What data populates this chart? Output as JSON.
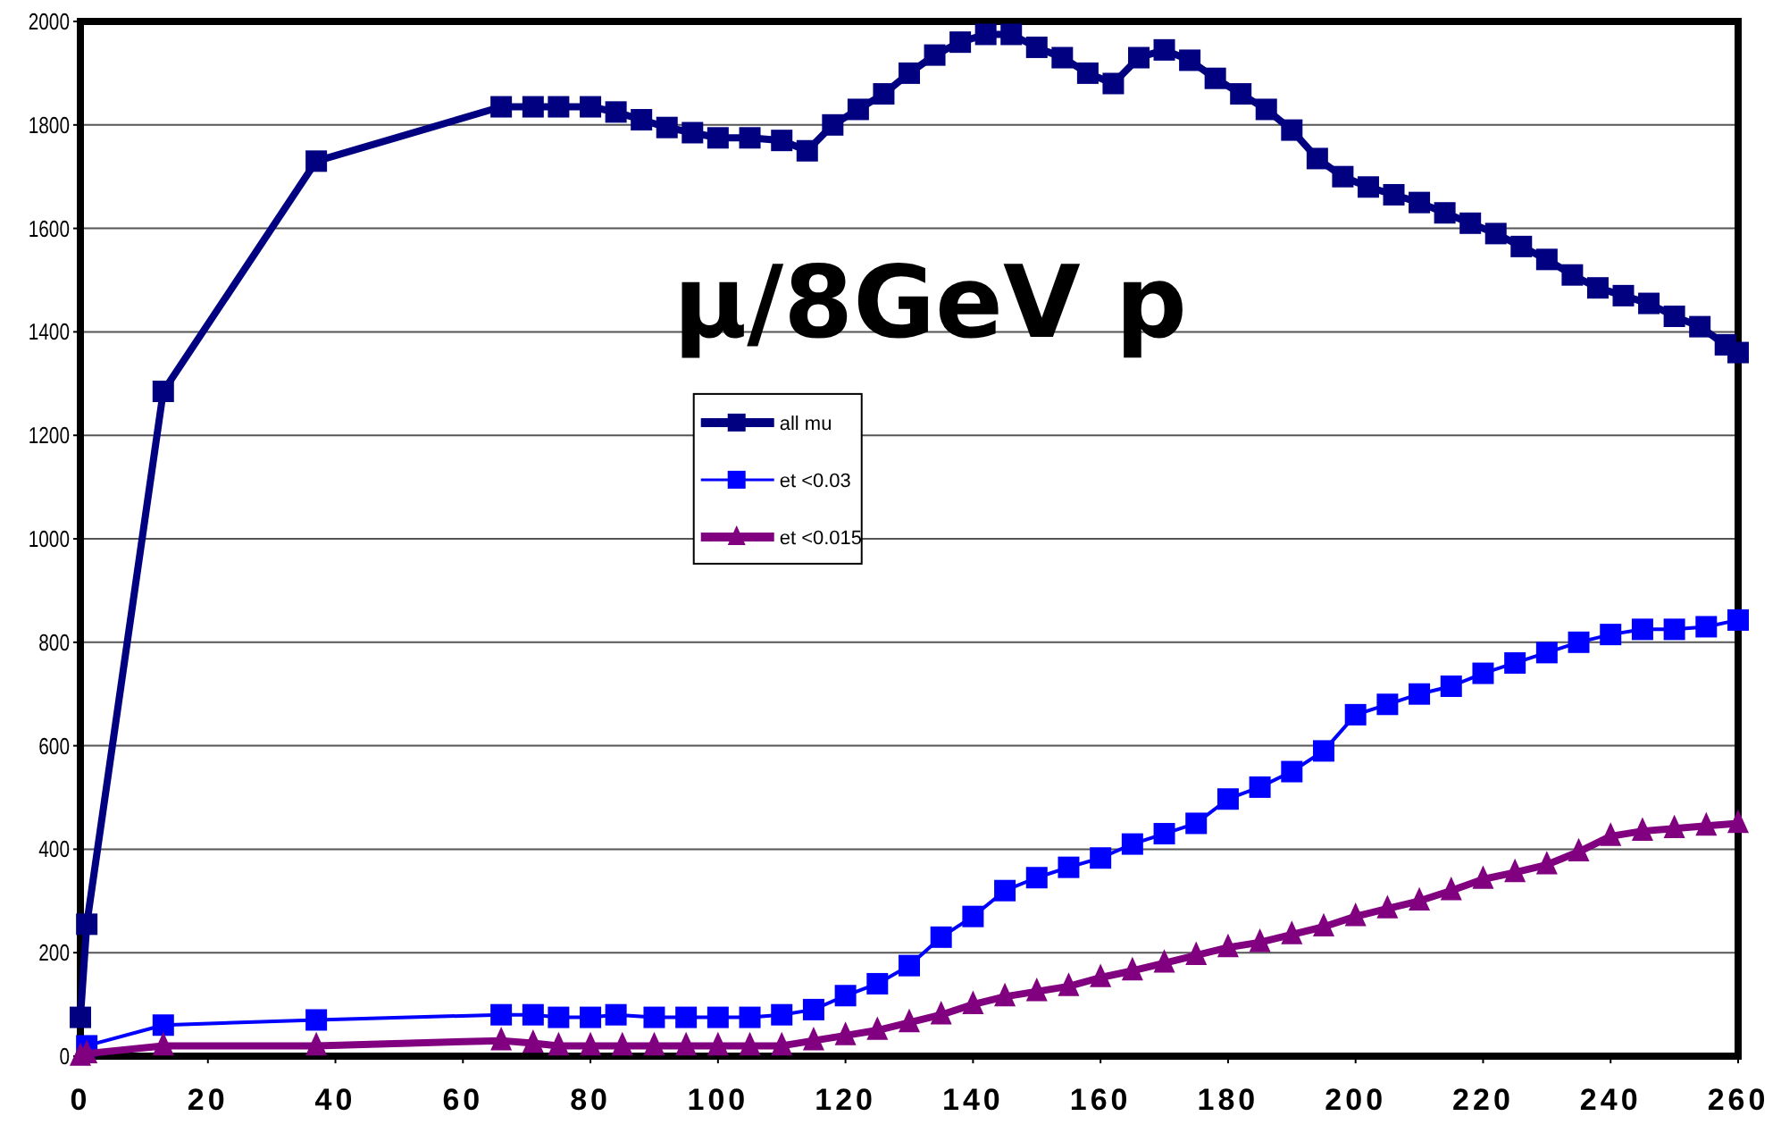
{
  "chart_data": {
    "type": "line",
    "title": "μ/8GeV p",
    "xlim": [
      0,
      260
    ],
    "xticks": [
      0,
      20,
      40,
      60,
      80,
      100,
      120,
      140,
      160,
      180,
      200,
      220,
      240,
      260
    ],
    "ylim": [
      0,
      2000
    ],
    "yticks": [
      0,
      200,
      400,
      600,
      800,
      1000,
      1200,
      1400,
      1600,
      1800,
      2000
    ],
    "grid": "y",
    "legend": "center",
    "series": [
      {
        "name": "all mu",
        "color": "#000080",
        "marker": "square",
        "x": [
          0,
          1,
          13,
          37,
          66,
          71,
          75,
          80,
          84,
          88,
          92,
          96,
          100,
          105,
          110,
          114,
          118,
          122,
          126,
          130,
          134,
          138,
          142,
          146,
          150,
          154,
          158,
          162,
          166,
          170,
          174,
          178,
          182,
          186,
          190,
          194,
          198,
          202,
          206,
          210,
          214,
          218,
          222,
          226,
          230,
          234,
          238,
          242,
          246,
          250,
          254,
          258,
          260
        ],
        "values": [
          75,
          255,
          1285,
          1730,
          1835,
          1835,
          1835,
          1835,
          1825,
          1810,
          1795,
          1785,
          1775,
          1775,
          1770,
          1750,
          1800,
          1830,
          1860,
          1900,
          1935,
          1960,
          1975,
          1975,
          1950,
          1930,
          1900,
          1880,
          1930,
          1945,
          1925,
          1890,
          1860,
          1830,
          1790,
          1735,
          1700,
          1680,
          1665,
          1650,
          1630,
          1610,
          1590,
          1565,
          1540,
          1510,
          1485,
          1470,
          1455,
          1430,
          1410,
          1375,
          1360
        ]
      },
      {
        "name": "et <0.03",
        "color": "#0000ff",
        "marker": "square",
        "x": [
          1,
          13,
          37,
          66,
          71,
          75,
          80,
          84,
          90,
          95,
          100,
          105,
          110,
          115,
          120,
          125,
          130,
          135,
          140,
          145,
          150,
          155,
          160,
          165,
          170,
          175,
          180,
          185,
          190,
          195,
          200,
          205,
          210,
          215,
          220,
          225,
          230,
          235,
          240,
          245,
          250,
          255,
          260
        ],
        "values": [
          20,
          60,
          70,
          80,
          80,
          75,
          75,
          80,
          75,
          75,
          75,
          75,
          80,
          90,
          117,
          140,
          175,
          230,
          270,
          320,
          345,
          365,
          383,
          410,
          430,
          450,
          497,
          520,
          550,
          590,
          660,
          680,
          700,
          715,
          740,
          760,
          780,
          800,
          815,
          825,
          825,
          830,
          843
        ]
      },
      {
        "name": "et <0.015",
        "color": "#800080",
        "marker": "triangle",
        "x": [
          0,
          1,
          13,
          37,
          66,
          71,
          75,
          80,
          85,
          90,
          95,
          100,
          105,
          110,
          115,
          120,
          125,
          130,
          135,
          140,
          145,
          150,
          155,
          160,
          165,
          170,
          175,
          180,
          185,
          190,
          195,
          200,
          205,
          210,
          215,
          220,
          225,
          230,
          235,
          240,
          245,
          250,
          255,
          260
        ],
        "values": [
          0,
          5,
          20,
          20,
          30,
          25,
          20,
          20,
          20,
          20,
          20,
          20,
          20,
          20,
          30,
          40,
          50,
          65,
          80,
          100,
          115,
          125,
          135,
          152,
          165,
          180,
          195,
          210,
          220,
          235,
          250,
          270,
          285,
          300,
          320,
          342,
          355,
          370,
          395,
          425,
          435,
          440,
          445,
          450
        ]
      }
    ]
  }
}
